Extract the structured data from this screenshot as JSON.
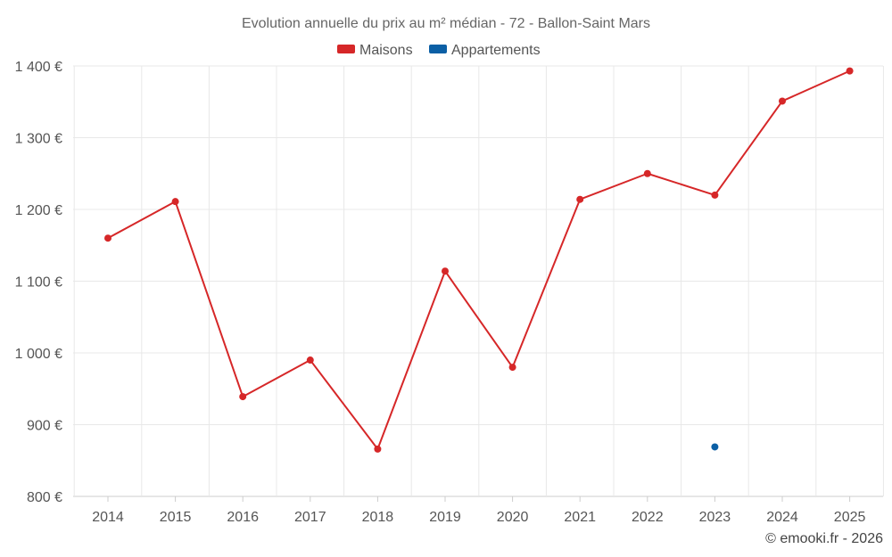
{
  "chart_data": {
    "type": "line",
    "title": "Evolution annuelle du prix au m² médian - 72 - Ballon-Saint Mars",
    "categories": [
      "2014",
      "2015",
      "2016",
      "2017",
      "2018",
      "2019",
      "2020",
      "2021",
      "2022",
      "2023",
      "2024",
      "2025"
    ],
    "ylim": [
      800,
      1400
    ],
    "yticks": [
      800,
      900,
      1000,
      1100,
      1200,
      1300,
      1400
    ],
    "ytick_labels": [
      "800 €",
      "900 €",
      "1 000 €",
      "1 100 €",
      "1 200 €",
      "1 300 €",
      "1 400 €"
    ],
    "grid": true,
    "legend_position": "top-center",
    "series": [
      {
        "name": "Maisons",
        "color": "#d62728",
        "values": [
          1160,
          1211,
          939,
          990,
          866,
          1114,
          980,
          1214,
          1250,
          1220,
          1351,
          1393
        ]
      },
      {
        "name": "Appartements",
        "color": "#0b5fa5",
        "values": [
          null,
          null,
          null,
          null,
          null,
          null,
          null,
          null,
          null,
          869,
          null,
          null
        ]
      }
    ]
  },
  "credit": "© emooki.fr - 2026"
}
